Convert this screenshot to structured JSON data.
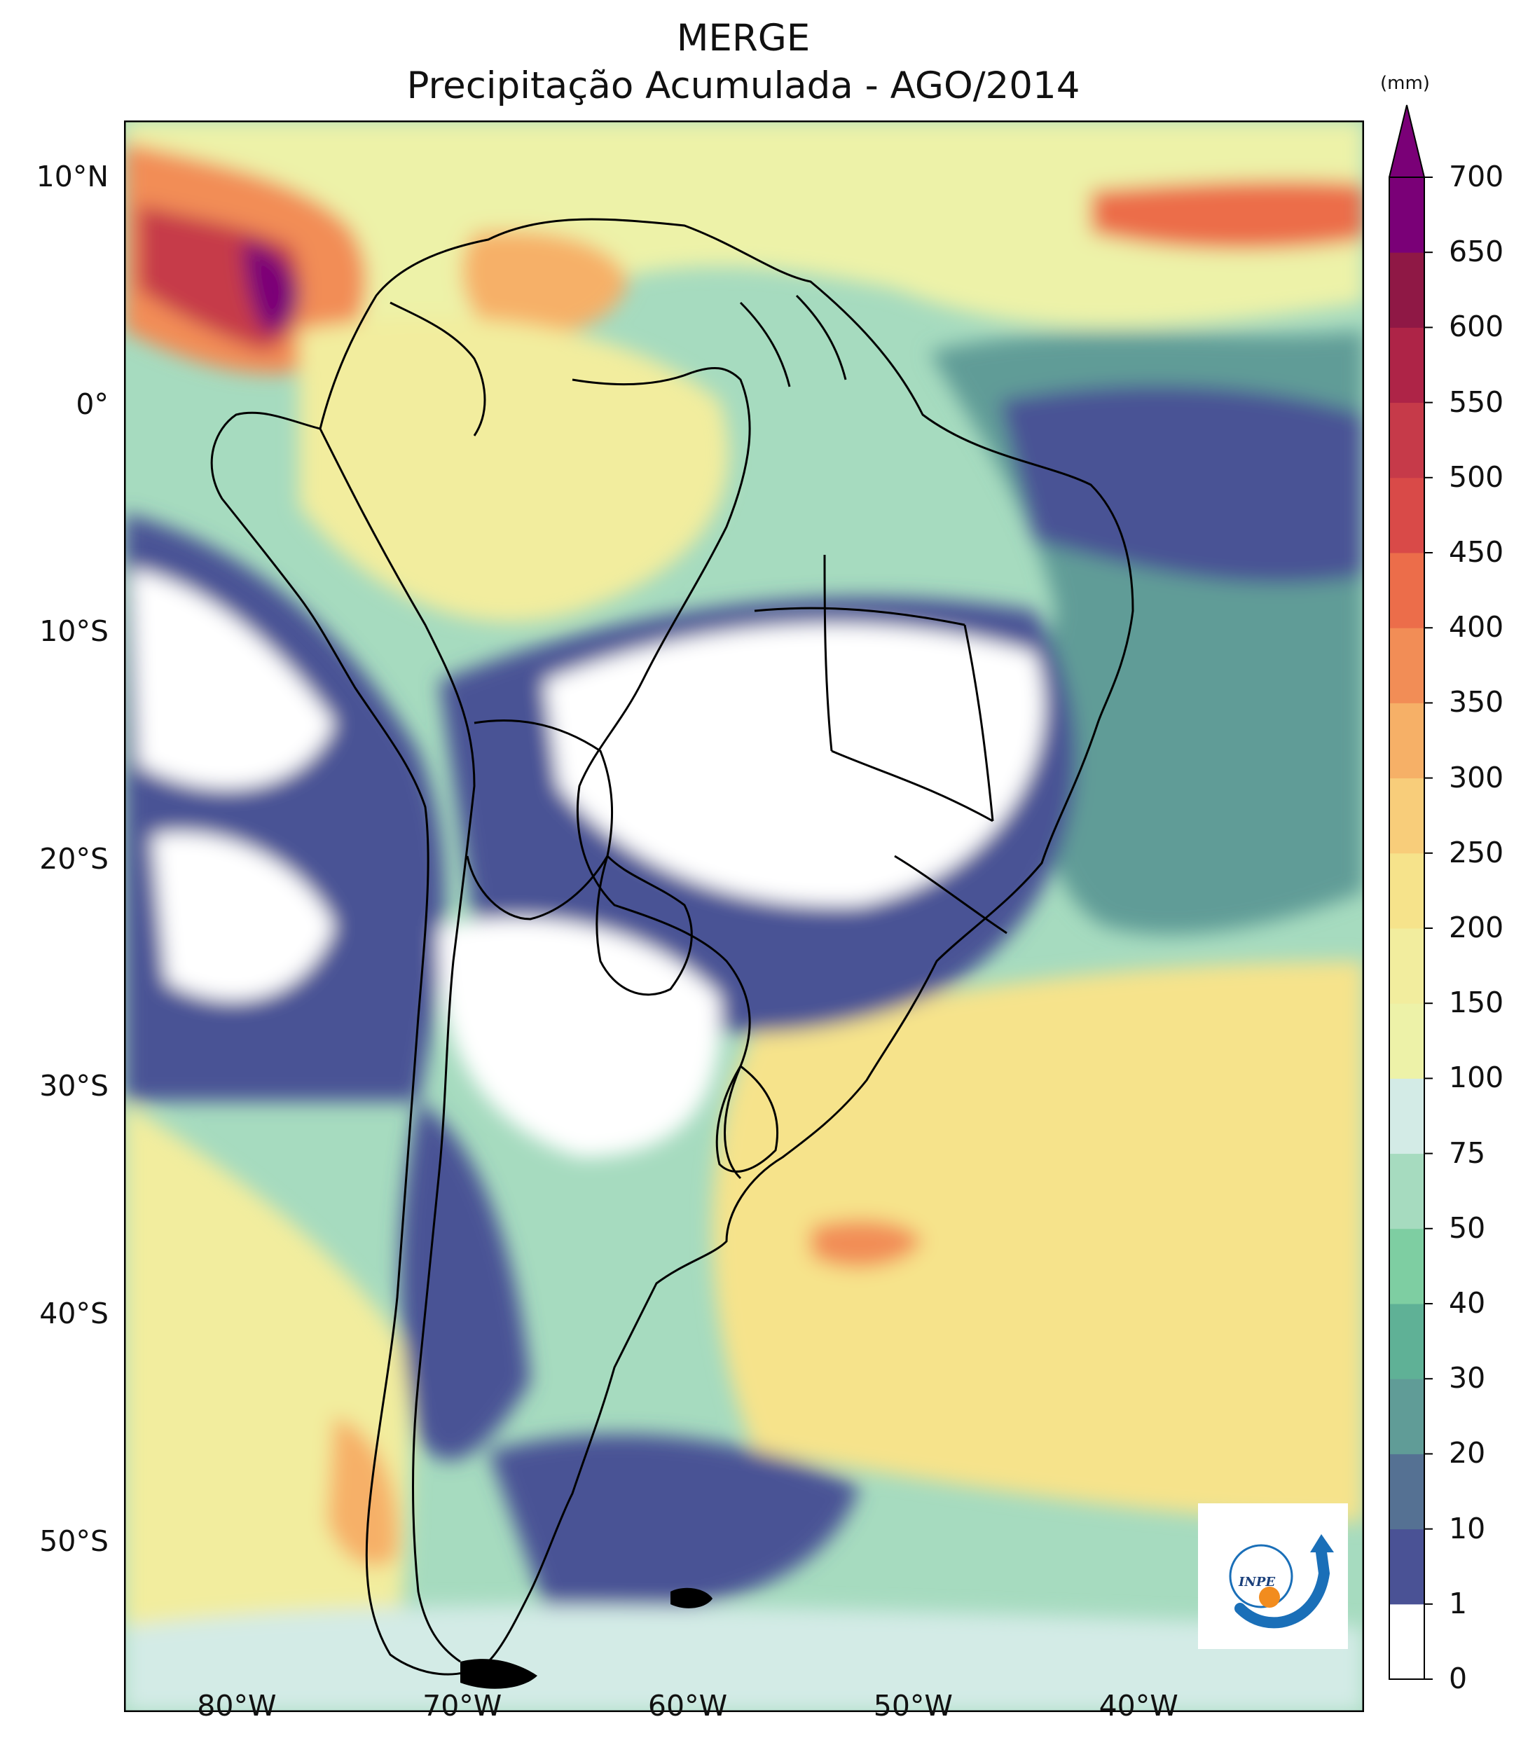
{
  "title": {
    "line1": "MERGE",
    "line2": "Precipitação Acumulada - AGO/2014"
  },
  "map": {
    "extent": {
      "lon_min": -85,
      "lon_max": -30,
      "lat_min": -57.5,
      "lat_max": 12.5
    },
    "lat_ticks": [
      {
        "lat": 10,
        "label": "10°N"
      },
      {
        "lat": 0,
        "label": "0°"
      },
      {
        "lat": -10,
        "label": "10°S"
      },
      {
        "lat": -20,
        "label": "20°S"
      },
      {
        "lat": -30,
        "label": "30°S"
      },
      {
        "lat": -40,
        "label": "40°S"
      },
      {
        "lat": -50,
        "label": "50°S"
      }
    ],
    "lon_ticks": [
      {
        "lon": -80,
        "label": "80°W"
      },
      {
        "lon": -70,
        "label": "70°W"
      },
      {
        "lon": -60,
        "label": "60°W"
      },
      {
        "lon": -50,
        "label": "50°W"
      },
      {
        "lon": -40,
        "label": "40°W"
      }
    ],
    "dry_regions_color": "#ffffff",
    "logo_text": "INPE"
  },
  "colorbar": {
    "unit": "(mm)",
    "levels": [
      "0",
      "1",
      "10",
      "20",
      "30",
      "40",
      "50",
      "75",
      "100",
      "150",
      "200",
      "250",
      "300",
      "350",
      "400",
      "450",
      "500",
      "550",
      "600",
      "650",
      "700"
    ],
    "colors": [
      "#ffffff",
      "#4a5295",
      "#557193",
      "#609c97",
      "#5fb196",
      "#7ecea2",
      "#a6dbbf",
      "#d3ebe6",
      "#edf2a8",
      "#f2ed9e",
      "#f6e38b",
      "#f8cd7a",
      "#f6b067",
      "#f28d56",
      "#ec6d4a",
      "#d94a48",
      "#c63a49",
      "#ae2447",
      "#8f1845",
      "#7a0077"
    ],
    "extend_color": "#7a0077"
  }
}
